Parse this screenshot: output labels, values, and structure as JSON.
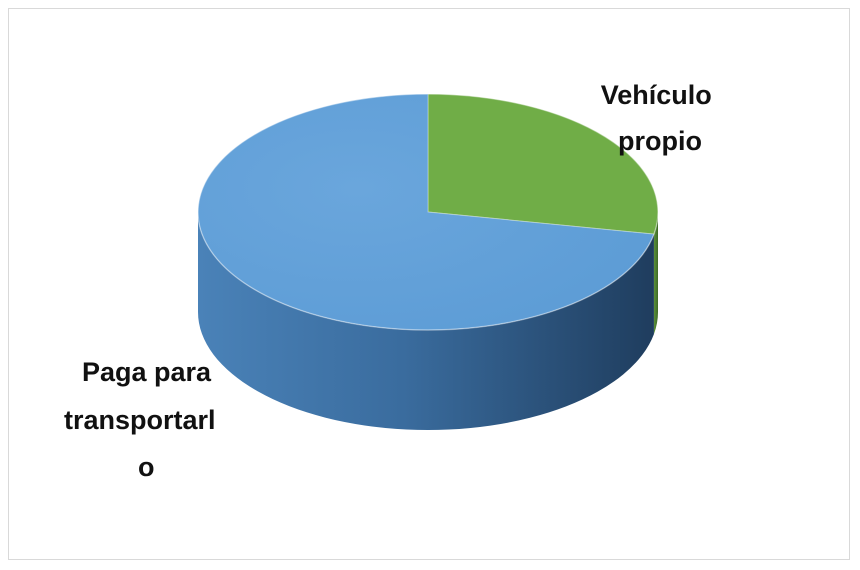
{
  "chart_data": {
    "type": "pie",
    "style": "3d",
    "title": "",
    "slices": [
      {
        "label_lines": [
          "Vehículo",
          "propio"
        ],
        "value": 28,
        "color": "#70ad47"
      },
      {
        "label_lines": [
          "Paga para",
          "transportarl",
          "o"
        ],
        "value": 72,
        "color": "#5b9bd5"
      }
    ],
    "legend": "none"
  }
}
